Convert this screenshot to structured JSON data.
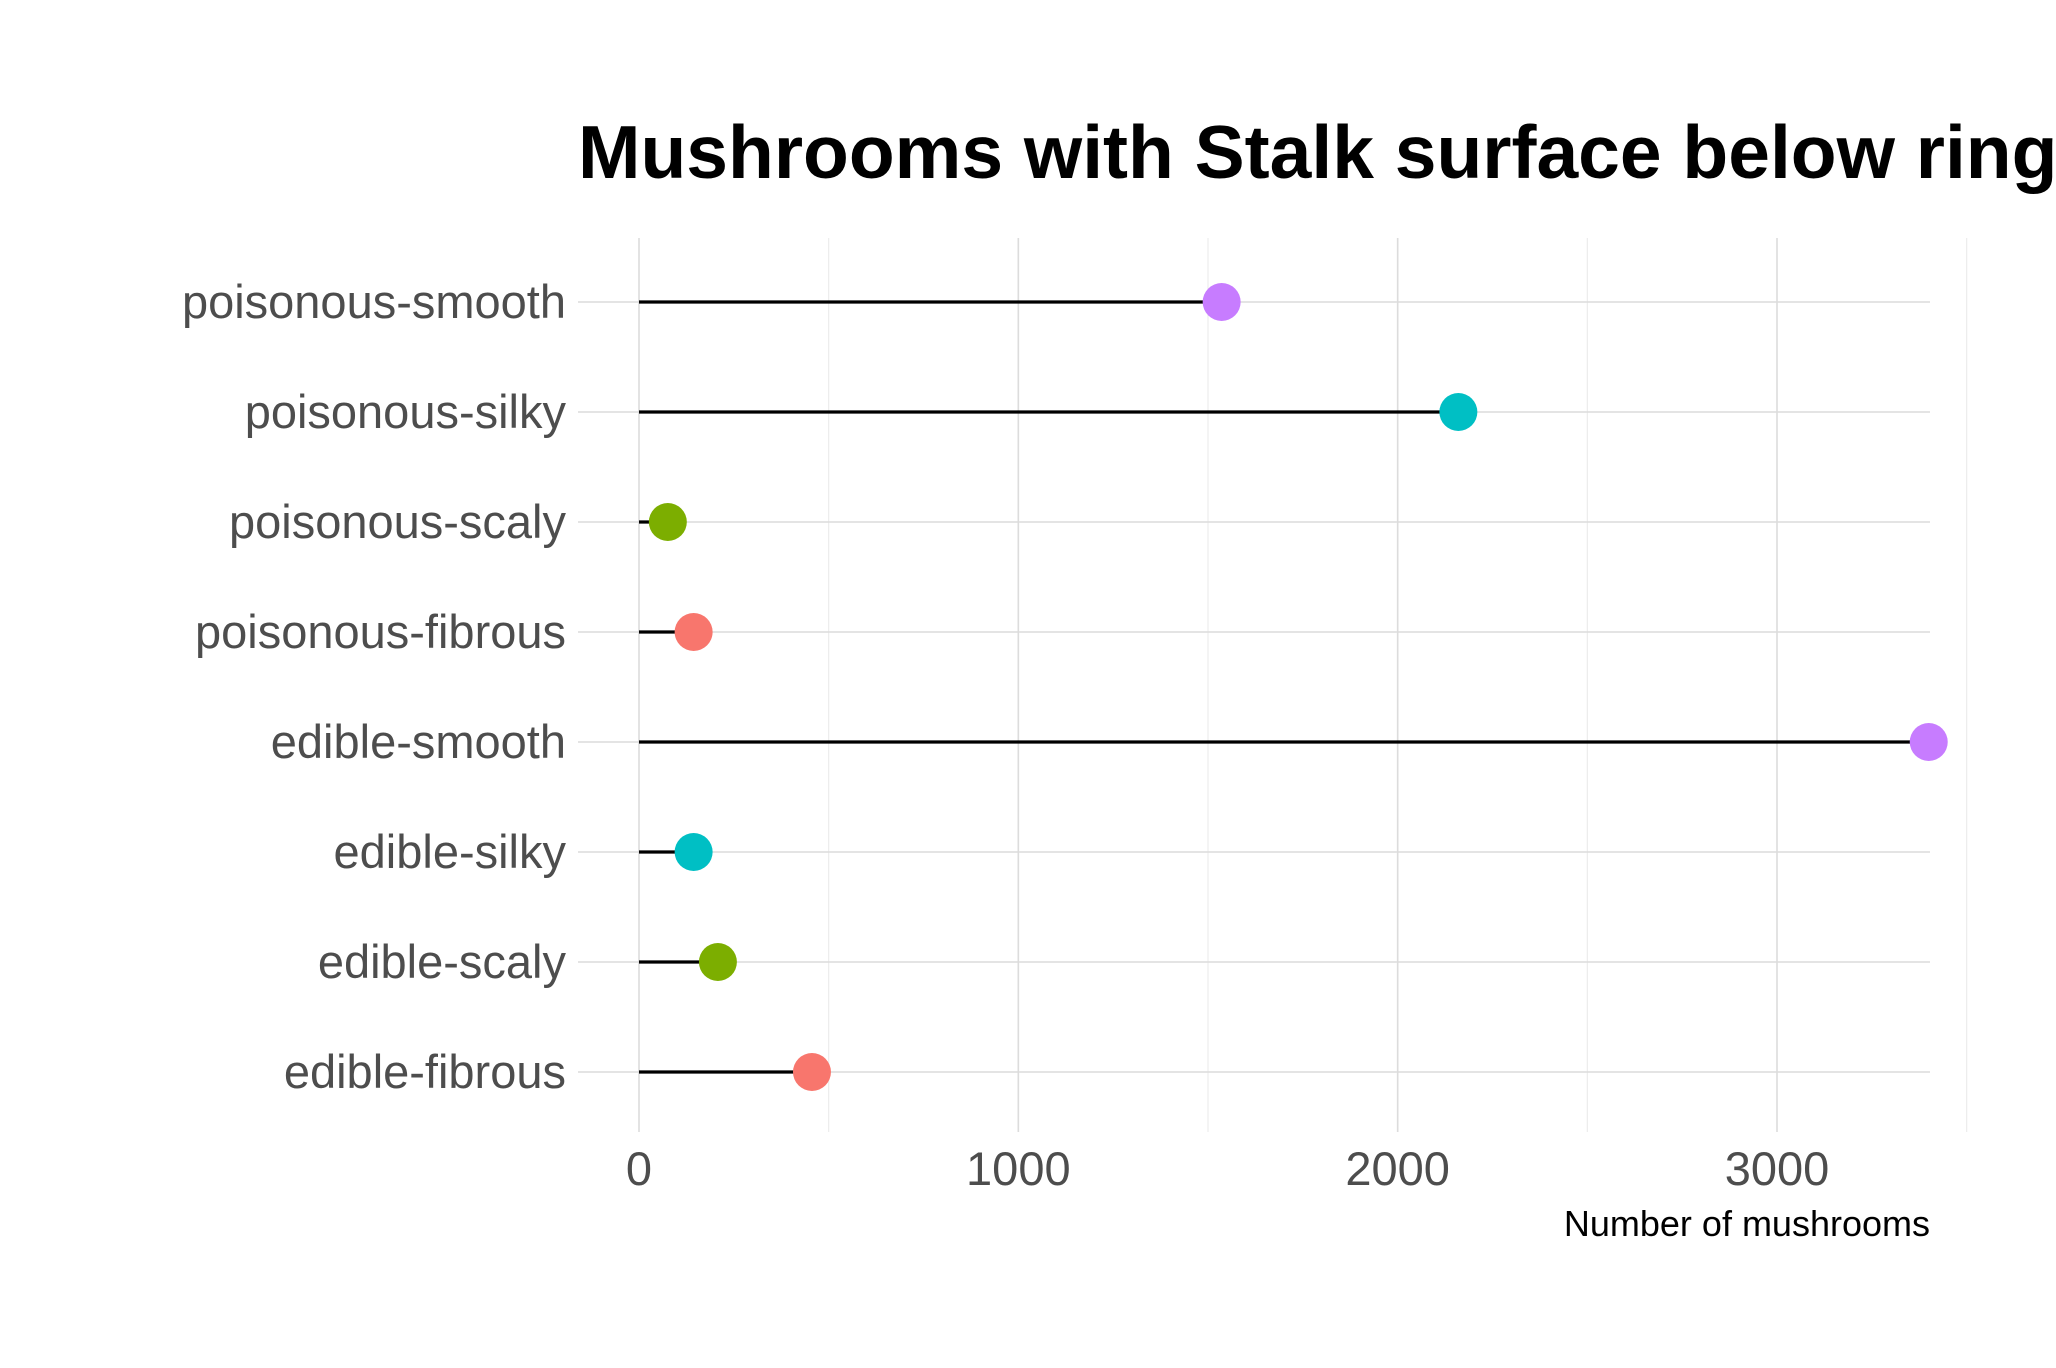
{
  "chart_data": {
    "type": "lollipop",
    "title": "Mushrooms with Stalk surface below ring",
    "xlabel": "Number of mushrooms",
    "ylabel": "",
    "xlim": [
      0,
      3550
    ],
    "xticks": [
      0,
      1000,
      2000,
      3000
    ],
    "grid": true,
    "legend": "none",
    "categories": [
      "edible-fibrous",
      "edible-scaly",
      "edible-silky",
      "edible-smooth",
      "poisonous-fibrous",
      "poisonous-scaly",
      "poisonous-silky",
      "poisonous-smooth"
    ],
    "values": [
      456,
      208,
      144,
      3400,
      144,
      76,
      2160,
      1536
    ],
    "point_colors": [
      "#F8766D",
      "#7CAE00",
      "#00BFC4",
      "#C77CFF",
      "#F8766D",
      "#7CAE00",
      "#00BFC4",
      "#C77CFF"
    ],
    "stem_color": "#000000"
  }
}
